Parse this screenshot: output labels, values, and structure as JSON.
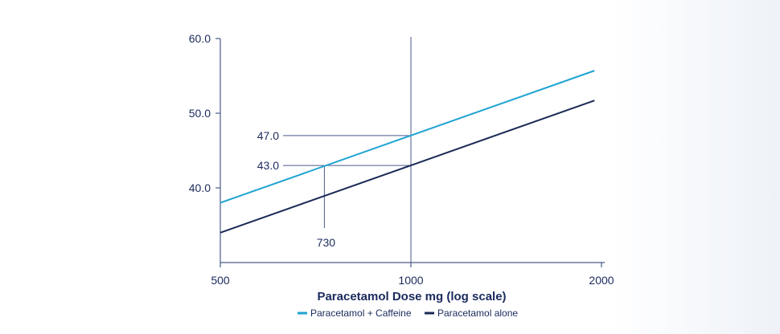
{
  "chart_data": {
    "type": "line",
    "xlabel": "Paracetamol Dose mg (log scale)",
    "x_scale": "log",
    "xlim": [
      500,
      2000
    ],
    "ylim": [
      30,
      60
    ],
    "x_ticks": [
      500,
      1000,
      2000
    ],
    "x_tick_labels": [
      "500",
      "1000",
      "2000"
    ],
    "y_ticks": [
      40,
      50,
      60
    ],
    "y_tick_labels": [
      "40.0",
      "50.0",
      "60.0"
    ],
    "grid": false,
    "legend_position": "bottom-center",
    "series": [
      {
        "name": "Paracetamol + Caffeine",
        "color": "#1fa3d1",
        "x": [
          500,
          1950
        ],
        "y": [
          38.0,
          55.7
        ]
      },
      {
        "name": "Paracetamol alone",
        "color": "#1b2a55",
        "x": [
          500,
          1950
        ],
        "y": [
          34.0,
          51.7
        ]
      }
    ],
    "annotations": [
      {
        "label": "47.0",
        "x": 1000,
        "y": 47.0
      },
      {
        "label": "43.0",
        "x": 1000,
        "y": 43.0
      },
      {
        "label": "730",
        "x": 730,
        "y": 43.0
      }
    ],
    "axis_color": "#4a5a8a"
  }
}
